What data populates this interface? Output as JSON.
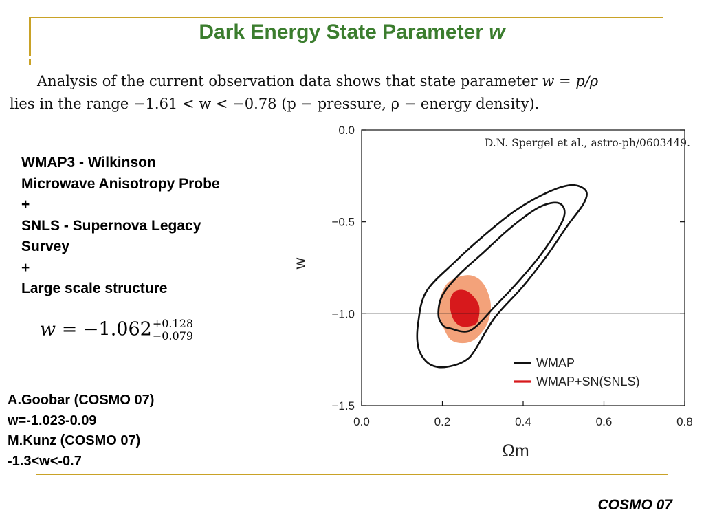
{
  "slide": {
    "title": "Dark Energy State Parameter",
    "title_var": "w",
    "footer": "COSMO 07"
  },
  "intro": {
    "line1_text": "Analysis of the current observation data shows that state parameter",
    "line1_math": "w = p/ρ",
    "line2_prefix": "lies in the range",
    "line2_math": "−1.61 < w < −0.78",
    "line2_suffix": "(p − pressure, ρ − energy density)."
  },
  "left_text": [
    "WMAP3 - Wilkinson",
    "Microwave Anisotropy Probe",
    "+",
    "SNLS - Supernova Legacy",
    "Survey",
    "+",
    "Large scale structure"
  ],
  "formula": {
    "lhs": "w",
    "rhs": "= −1.062",
    "sup": "+0.128",
    "sub": "−0.079"
  },
  "refs": [
    "A.Goobar (COSMO 07)",
    "w=-1.023-0.09",
    "M.Kunz (COSMO 07)",
    "-1.3<w<-0.7"
  ],
  "chart_data": {
    "type": "contour",
    "annotation": "D.N. Spergel et al., astro-ph/0603449.",
    "xlabel": "Ωm",
    "ylabel": "w",
    "xlim": [
      0.0,
      0.8
    ],
    "ylim": [
      -1.5,
      0.0
    ],
    "xticks": [
      "0.0",
      "0.2",
      "0.4",
      "0.6",
      "0.8"
    ],
    "yticks": [
      "0.0",
      "−0.5",
      "−1.0",
      "−1.5"
    ],
    "reference_line_y": -1.0,
    "legend": {
      "placement": "bottom-right",
      "entries": [
        {
          "label": "WMAP",
          "color": "#111111"
        },
        {
          "label": "WMAP+SN(SNLS)",
          "color": "#d7191c"
        }
      ]
    },
    "series": [
      {
        "name": "WMAP",
        "color": "#111111",
        "level": "95%",
        "points": [
          [
            0.28,
            -1.2
          ],
          [
            0.33,
            -1.02
          ],
          [
            0.4,
            -0.85
          ],
          [
            0.46,
            -0.68
          ],
          [
            0.51,
            -0.52
          ],
          [
            0.55,
            -0.4
          ],
          [
            0.555,
            -0.33
          ],
          [
            0.52,
            -0.3
          ],
          [
            0.46,
            -0.34
          ],
          [
            0.38,
            -0.44
          ],
          [
            0.3,
            -0.58
          ],
          [
            0.23,
            -0.72
          ],
          [
            0.16,
            -0.88
          ],
          [
            0.14,
            -1.05
          ],
          [
            0.14,
            -1.18
          ],
          [
            0.16,
            -1.26
          ],
          [
            0.19,
            -1.29
          ],
          [
            0.23,
            -1.28
          ],
          [
            0.26,
            -1.25
          ]
        ]
      },
      {
        "name": "WMAP",
        "color": "#111111",
        "level": "68%",
        "points": [
          [
            0.22,
            -1.08
          ],
          [
            0.27,
            -1.09
          ],
          [
            0.33,
            -0.96
          ],
          [
            0.39,
            -0.82
          ],
          [
            0.45,
            -0.66
          ],
          [
            0.5,
            -0.48
          ],
          [
            0.49,
            -0.4
          ],
          [
            0.44,
            -0.42
          ],
          [
            0.37,
            -0.53
          ],
          [
            0.3,
            -0.67
          ],
          [
            0.24,
            -0.79
          ],
          [
            0.2,
            -0.9
          ],
          [
            0.19,
            -1.0
          ],
          [
            0.2,
            -1.06
          ]
        ]
      },
      {
        "name": "WMAP+SN(SNLS)",
        "color": "#f3a27a",
        "level": "95%",
        "points": [
          [
            0.26,
            -0.79
          ],
          [
            0.29,
            -0.81
          ],
          [
            0.31,
            -0.87
          ],
          [
            0.32,
            -0.96
          ],
          [
            0.31,
            -1.06
          ],
          [
            0.28,
            -1.14
          ],
          [
            0.25,
            -1.16
          ],
          [
            0.22,
            -1.14
          ],
          [
            0.2,
            -1.06
          ],
          [
            0.19,
            -0.97
          ],
          [
            0.2,
            -0.88
          ],
          [
            0.22,
            -0.82
          ]
        ]
      },
      {
        "name": "WMAP+SN(SNLS)",
        "color": "#d7191c",
        "level": "68%",
        "points": [
          [
            0.25,
            -0.87
          ],
          [
            0.27,
            -0.89
          ],
          [
            0.29,
            -0.95
          ],
          [
            0.29,
            -1.02
          ],
          [
            0.28,
            -1.06
          ],
          [
            0.25,
            -1.07
          ],
          [
            0.23,
            -1.04
          ],
          [
            0.22,
            -0.98
          ],
          [
            0.22,
            -0.92
          ],
          [
            0.23,
            -0.88
          ]
        ]
      }
    ]
  }
}
